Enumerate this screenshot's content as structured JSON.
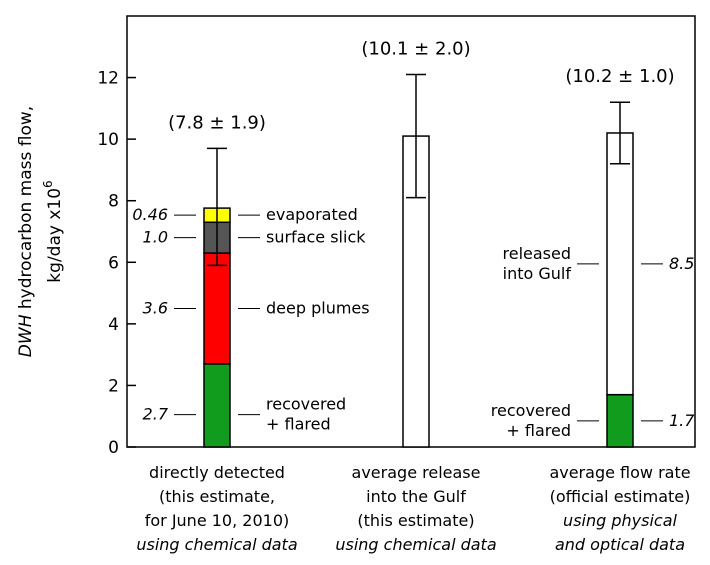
{
  "chart_data": {
    "type": "bar",
    "ylabel_italic": "DWH",
    "ylabel_rest": " hydrocarbon mass flow,",
    "ylabel_line2": "kg/day x10",
    "ylabel_exp": "6",
    "ylim": [
      0,
      14
    ],
    "yticks": [
      0,
      2,
      4,
      6,
      8,
      10,
      12
    ],
    "grid": false,
    "categories": [
      {
        "id": "directly-detected",
        "lines": [
          "directly detected",
          "(this estimate,",
          "for June 10, 2010)"
        ],
        "italic_lines": [
          "using chemical data"
        ]
      },
      {
        "id": "average-release",
        "lines": [
          "average release",
          "into the Gulf",
          "(this estimate)"
        ],
        "italic_lines": [
          "using chemical data"
        ]
      },
      {
        "id": "average-flow-rate",
        "lines": [
          "average flow rate",
          "(official estimate)"
        ],
        "italic_lines": [
          "using physical",
          "and optical data"
        ]
      }
    ],
    "bars": [
      {
        "id": "directly-detected",
        "total": 7.8,
        "error": 1.9,
        "total_label": "(7.8 ± 1.9)",
        "segments": [
          {
            "name": "recovered + flared",
            "value": 2.7,
            "value_label": "2.7",
            "label_lines": [
              "recovered",
              "+ flared"
            ],
            "color": "#119c1e"
          },
          {
            "name": "deep plumes",
            "value": 3.6,
            "value_label": "3.6",
            "label_lines": [
              "deep plumes"
            ],
            "color": "#ff0000"
          },
          {
            "name": "surface slick",
            "value": 1.0,
            "value_label": "1.0",
            "label_lines": [
              "surface slick"
            ],
            "color": "#555555"
          },
          {
            "name": "evaporated",
            "value": 0.46,
            "value_label": "0.46",
            "label_lines": [
              "evaporated"
            ],
            "color": "#ffff00"
          }
        ]
      },
      {
        "id": "average-release",
        "total": 10.1,
        "error": 2.0,
        "total_label": "(10.1 ± 2.0)",
        "segments": [
          {
            "name": "release",
            "value": 10.1,
            "value_label": "",
            "label_lines": [],
            "color": "#ffffff"
          }
        ]
      },
      {
        "id": "average-flow-rate",
        "total": 10.2,
        "error": 1.0,
        "total_label": "(10.2 ± 1.0)",
        "segments": [
          {
            "name": "recovered + flared",
            "value": 1.7,
            "value_label": "1.7",
            "label_lines": [
              "recovered",
              "+ flared"
            ],
            "color": "#119c1e"
          },
          {
            "name": "released into Gulf",
            "value": 8.5,
            "value_label": "8.5",
            "label_lines": [
              "released",
              "into Gulf"
            ],
            "color": "#ffffff"
          }
        ]
      }
    ]
  }
}
